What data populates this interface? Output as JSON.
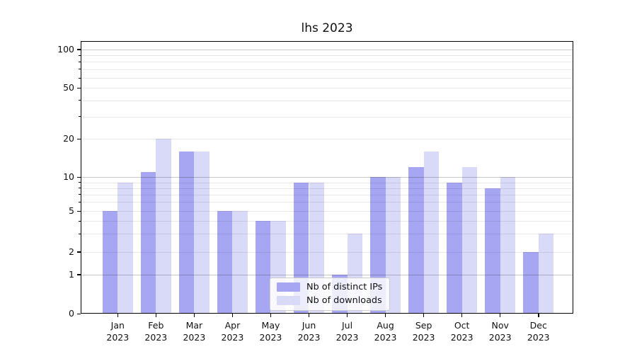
{
  "figure": {
    "background": "#ffffff"
  },
  "chart_data": {
    "type": "bar",
    "title": "lhs 2023",
    "categories": [
      "Jan 2023",
      "Feb 2023",
      "Mar 2023",
      "Apr 2023",
      "May 2023",
      "Jun 2023",
      "Jul 2023",
      "Aug 2023",
      "Sep 2023",
      "Oct 2023",
      "Nov 2023",
      "Dec 2023"
    ],
    "series": [
      {
        "name": "Nb of distinct IPs",
        "color": "#a6a6f2",
        "values": [
          5,
          11,
          16,
          5,
          4,
          9,
          1,
          10,
          12,
          9,
          8,
          2
        ]
      },
      {
        "name": "Nb of downloads",
        "color": "#d9d9f8",
        "values": [
          9,
          20,
          16,
          5,
          4,
          9,
          3,
          10,
          16,
          12,
          10,
          3
        ]
      }
    ],
    "xlabel": "",
    "ylabel": "",
    "yscale": "symlog",
    "ylim": [
      0,
      100
    ],
    "y_tick_values": [
      0,
      1,
      2,
      5,
      10,
      20,
      50,
      100
    ],
    "y_tick_labels": [
      "0",
      "1",
      "2",
      "5",
      "10",
      "20",
      "50",
      "100"
    ],
    "y_major_gridlines": [
      1,
      10,
      100
    ],
    "y_minor_gridlines": [
      2,
      3,
      4,
      5,
      6,
      7,
      8,
      9,
      20,
      30,
      40,
      50,
      60,
      70,
      80,
      90
    ],
    "grid": true,
    "legend_position": "lower center inside plot",
    "legend_entries": [
      "Nb of distinct IPs",
      "Nb of downloads"
    ]
  },
  "colors": {
    "series_distinct_ips": "#a6a6f2",
    "series_downloads": "#d9d9f8",
    "grid_major": "#c8c8c8",
    "grid_minor": "#ebebeb",
    "spine": "#000000",
    "text": "#111111",
    "legend_border": "#cccccc"
  }
}
